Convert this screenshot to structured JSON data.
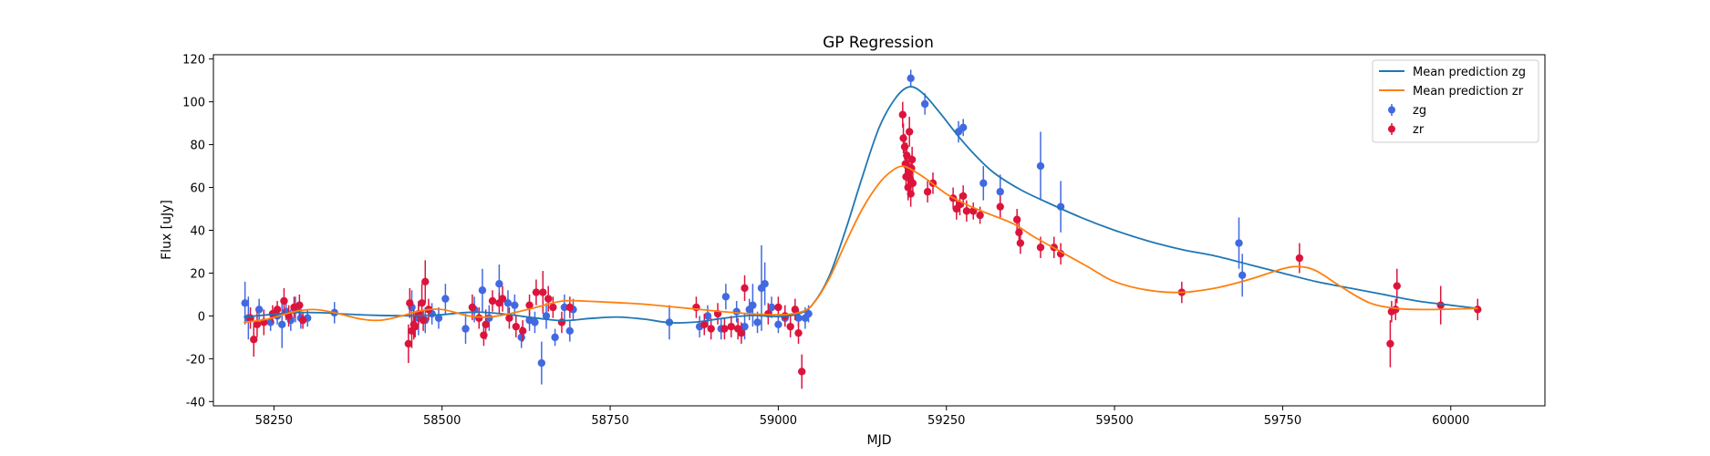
{
  "chart_data": {
    "type": "scatter",
    "title": "GP Regression",
    "xlabel": "MJD",
    "ylabel": "Flux [uJy]",
    "xlim": [
      58160,
      60140
    ],
    "ylim": [
      -42,
      122
    ],
    "x_ticks": [
      58250,
      58500,
      58750,
      59000,
      59250,
      59500,
      59750,
      60000
    ],
    "y_ticks": [
      -40,
      -20,
      0,
      20,
      40,
      60,
      80,
      100,
      120
    ],
    "grid": false,
    "legend_position": "top-right",
    "lines": [
      {
        "name": "Mean prediction zg",
        "color": "#1f77b4",
        "points": [
          [
            58205,
            -0.5
          ],
          [
            58240,
            0.5
          ],
          [
            58280,
            1.5
          ],
          [
            58320,
            1.5
          ],
          [
            58360,
            0.8
          ],
          [
            58400,
            0.3
          ],
          [
            58450,
            0.1
          ],
          [
            58500,
            0.6
          ],
          [
            58530,
            1.5
          ],
          [
            58560,
            1.7
          ],
          [
            58600,
            0.6
          ],
          [
            58640,
            -1.0
          ],
          [
            58680,
            -2.2
          ],
          [
            58720,
            -1.2
          ],
          [
            58760,
            -0.5
          ],
          [
            58800,
            -1.5
          ],
          [
            58840,
            -3.2
          ],
          [
            58880,
            -2.8
          ],
          [
            58920,
            -1.0
          ],
          [
            58960,
            0.2
          ],
          [
            59000,
            -0.3
          ],
          [
            59030,
            1.0
          ],
          [
            59050,
            5
          ],
          [
            59075,
            18
          ],
          [
            59100,
            40
          ],
          [
            59125,
            65
          ],
          [
            59150,
            88
          ],
          [
            59175,
            102
          ],
          [
            59195,
            107
          ],
          [
            59215,
            104
          ],
          [
            59240,
            95
          ],
          [
            59265,
            85
          ],
          [
            59290,
            76
          ],
          [
            59320,
            67
          ],
          [
            59360,
            59
          ],
          [
            59400,
            53
          ],
          [
            59450,
            46
          ],
          [
            59500,
            40
          ],
          [
            59550,
            35
          ],
          [
            59600,
            31
          ],
          [
            59650,
            28
          ],
          [
            59700,
            24
          ],
          [
            59750,
            20
          ],
          [
            59800,
            16
          ],
          [
            59850,
            13
          ],
          [
            59900,
            10
          ],
          [
            59950,
            7
          ],
          [
            60000,
            5
          ],
          [
            60040,
            3.5
          ]
        ]
      },
      {
        "name": "Mean prediction zr",
        "color": "#ff7f0e",
        "points": [
          [
            58205,
            -3
          ],
          [
            58240,
            -1.5
          ],
          [
            58280,
            2
          ],
          [
            58310,
            3
          ],
          [
            58340,
            1.5
          ],
          [
            58380,
            -1.5
          ],
          [
            58410,
            -2
          ],
          [
            58440,
            0
          ],
          [
            58470,
            2.5
          ],
          [
            58500,
            3
          ],
          [
            58540,
            0
          ],
          [
            58570,
            -0.5
          ],
          [
            58600,
            1
          ],
          [
            58640,
            4
          ],
          [
            58680,
            7
          ],
          [
            58720,
            6.8
          ],
          [
            58760,
            6.2
          ],
          [
            58800,
            5.5
          ],
          [
            58850,
            4
          ],
          [
            58900,
            2.5
          ],
          [
            58950,
            1.2
          ],
          [
            59000,
            0.5
          ],
          [
            59030,
            1.5
          ],
          [
            59050,
            5
          ],
          [
            59075,
            17
          ],
          [
            59100,
            34
          ],
          [
            59125,
            50
          ],
          [
            59150,
            62
          ],
          [
            59170,
            68
          ],
          [
            59185,
            70
          ],
          [
            59200,
            68
          ],
          [
            59220,
            64
          ],
          [
            59250,
            57
          ],
          [
            59280,
            52
          ],
          [
            59310,
            48
          ],
          [
            59350,
            43
          ],
          [
            59380,
            37
          ],
          [
            59420,
            30
          ],
          [
            59460,
            23
          ],
          [
            59500,
            16
          ],
          [
            59550,
            12
          ],
          [
            59600,
            11
          ],
          [
            59650,
            13
          ],
          [
            59700,
            17
          ],
          [
            59750,
            22
          ],
          [
            59775,
            23
          ],
          [
            59800,
            21
          ],
          [
            59840,
            13
          ],
          [
            59880,
            6
          ],
          [
            59920,
            3.5
          ],
          [
            59960,
            3
          ],
          [
            60000,
            3.2
          ],
          [
            60040,
            3.5
          ]
        ]
      }
    ],
    "series": [
      {
        "name": "zg",
        "color": "#4169e1",
        "points": [
          [
            58207,
            6,
            10
          ],
          [
            58212,
            -1,
            10
          ],
          [
            58228,
            3,
            5
          ],
          [
            58245,
            -3,
            4
          ],
          [
            58255,
            0,
            4
          ],
          [
            58262,
            -4,
            11
          ],
          [
            58268,
            2,
            4
          ],
          [
            58275,
            -2,
            5
          ],
          [
            58282,
            3,
            6
          ],
          [
            58290,
            -1,
            5
          ],
          [
            58300,
            -1,
            4
          ],
          [
            58340,
            1.5,
            5
          ],
          [
            58455,
            4,
            8
          ],
          [
            58465,
            -1,
            8
          ],
          [
            58475,
            -2,
            6
          ],
          [
            58485,
            1,
            5
          ],
          [
            58495,
            -1,
            5
          ],
          [
            58505,
            8,
            7
          ],
          [
            58535,
            -6,
            7
          ],
          [
            58548,
            3,
            6
          ],
          [
            58560,
            12,
            10
          ],
          [
            58570,
            -1,
            6
          ],
          [
            58585,
            15,
            9
          ],
          [
            58598,
            6,
            6
          ],
          [
            58608,
            5,
            5
          ],
          [
            58618,
            -10,
            5
          ],
          [
            58630,
            -2,
            5
          ],
          [
            58638,
            -3,
            5
          ],
          [
            58648,
            -22,
            10
          ],
          [
            58655,
            0,
            6
          ],
          [
            58668,
            -10,
            4
          ],
          [
            58682,
            4,
            6
          ],
          [
            58690,
            -7,
            5
          ],
          [
            58695,
            3,
            5
          ],
          [
            58838,
            -3,
            8
          ],
          [
            58883,
            -5,
            5
          ],
          [
            58895,
            0,
            5
          ],
          [
            58915,
            -6,
            5
          ],
          [
            58922,
            9,
            6
          ],
          [
            58938,
            2,
            5
          ],
          [
            58950,
            -5,
            6
          ],
          [
            58957,
            3,
            5
          ],
          [
            58962,
            5,
            10
          ],
          [
            58969,
            -3,
            5
          ],
          [
            58975,
            13,
            20
          ],
          [
            58980,
            15,
            10
          ],
          [
            58990,
            4,
            5
          ],
          [
            59000,
            -4,
            4
          ],
          [
            59010,
            -1,
            4
          ],
          [
            59030,
            -1,
            4
          ],
          [
            59040,
            -1,
            5
          ],
          [
            59045,
            1,
            4
          ],
          [
            59197,
            111,
            4
          ],
          [
            59218,
            99,
            5
          ],
          [
            59268,
            86,
            5
          ],
          [
            59275,
            88,
            4
          ],
          [
            59305,
            62,
            8
          ],
          [
            59330,
            58,
            8
          ],
          [
            59390,
            70,
            16
          ],
          [
            59420,
            51,
            12
          ],
          [
            59685,
            34,
            12
          ],
          [
            59690,
            19,
            10
          ]
        ]
      },
      {
        "name": "zr",
        "color": "#dc143c",
        "points": [
          [
            58215,
            -1,
            5
          ],
          [
            58220,
            -11,
            8
          ],
          [
            58225,
            -4,
            6
          ],
          [
            58235,
            -3,
            6
          ],
          [
            58248,
            1,
            4
          ],
          [
            58255,
            3,
            4
          ],
          [
            58265,
            7,
            6
          ],
          [
            58272,
            0,
            5
          ],
          [
            58280,
            4,
            5
          ],
          [
            58288,
            5,
            5
          ],
          [
            58293,
            -2,
            4
          ],
          [
            58450,
            -13,
            9
          ],
          [
            58452,
            6,
            7
          ],
          [
            58455,
            -7,
            8
          ],
          [
            58458,
            -4,
            7
          ],
          [
            58460,
            -5,
            5
          ],
          [
            58465,
            1,
            5
          ],
          [
            58470,
            6,
            9
          ],
          [
            58472,
            -2,
            5
          ],
          [
            58475,
            16,
            10
          ],
          [
            58480,
            3,
            5
          ],
          [
            58545,
            4,
            6
          ],
          [
            58555,
            -1,
            5
          ],
          [
            58562,
            -9,
            5
          ],
          [
            58565,
            -4,
            7
          ],
          [
            58575,
            7,
            5
          ],
          [
            58585,
            6,
            5
          ],
          [
            58590,
            8,
            6
          ],
          [
            58600,
            -1,
            5
          ],
          [
            58610,
            -5,
            5
          ],
          [
            58620,
            -7,
            5
          ],
          [
            58630,
            5,
            5
          ],
          [
            58640,
            11,
            6
          ],
          [
            58650,
            11,
            10
          ],
          [
            58658,
            8,
            6
          ],
          [
            58665,
            4,
            5
          ],
          [
            58678,
            -3,
            5
          ],
          [
            58690,
            4,
            5
          ],
          [
            58878,
            4,
            5
          ],
          [
            58890,
            -4,
            5
          ],
          [
            58900,
            -6,
            5
          ],
          [
            58910,
            1,
            5
          ],
          [
            58920,
            -6,
            5
          ],
          [
            58930,
            -5,
            5
          ],
          [
            58940,
            -6,
            5
          ],
          [
            58945,
            -8,
            5
          ],
          [
            58950,
            13,
            6
          ],
          [
            58985,
            1,
            5
          ],
          [
            59000,
            4,
            5
          ],
          [
            59010,
            0,
            5
          ],
          [
            59018,
            -5,
            5
          ],
          [
            59025,
            3,
            5
          ],
          [
            59030,
            -8,
            5
          ],
          [
            59035,
            -26,
            8
          ],
          [
            59185,
            94,
            6
          ],
          [
            59186,
            83,
            7
          ],
          [
            59188,
            79,
            6
          ],
          [
            59189,
            71,
            6
          ],
          [
            59190,
            65,
            6
          ],
          [
            59191,
            75,
            6
          ],
          [
            59192,
            70,
            6
          ],
          [
            59193,
            60,
            6
          ],
          [
            59194,
            67,
            6
          ],
          [
            59195,
            86,
            7
          ],
          [
            59196,
            64,
            6
          ],
          [
            59197,
            57,
            6
          ],
          [
            59198,
            69,
            6
          ],
          [
            59199,
            73,
            6
          ],
          [
            59200,
            62,
            6
          ],
          [
            59222,
            58,
            5
          ],
          [
            59230,
            62,
            5
          ],
          [
            59260,
            55,
            5
          ],
          [
            59265,
            50,
            5
          ],
          [
            59270,
            52,
            5
          ],
          [
            59275,
            56,
            5
          ],
          [
            59280,
            49,
            5
          ],
          [
            59290,
            49,
            4
          ],
          [
            59300,
            47,
            4
          ],
          [
            59330,
            51,
            5
          ],
          [
            59355,
            45,
            5
          ],
          [
            59358,
            39,
            5
          ],
          [
            59360,
            34,
            5
          ],
          [
            59390,
            32,
            5
          ],
          [
            59410,
            32,
            5
          ],
          [
            59420,
            29,
            5
          ],
          [
            59600,
            11,
            5
          ],
          [
            59775,
            27,
            7
          ],
          [
            59910,
            -13,
            11
          ],
          [
            59912,
            2,
            5
          ],
          [
            59918,
            3,
            5
          ],
          [
            59920,
            14,
            8
          ],
          [
            59985,
            5,
            9
          ],
          [
            60040,
            3,
            5
          ]
        ]
      }
    ]
  }
}
